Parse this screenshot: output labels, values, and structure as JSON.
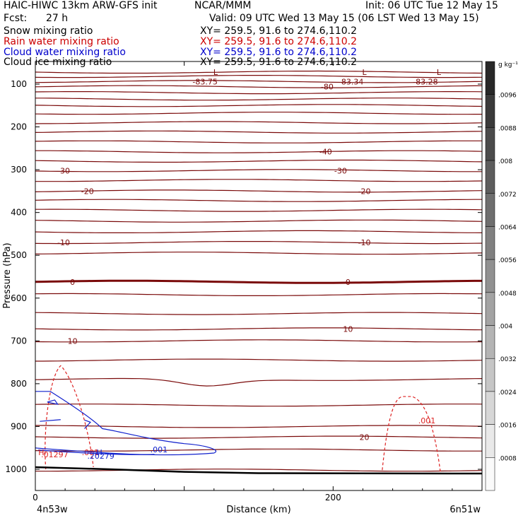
{
  "header": {
    "model": "HAIC-HIWC 13km ARW-GFS init",
    "org": "NCAR/MMM",
    "init": "Init: 06 UTC Tue 12 May 15",
    "fcst_label": "Fcst:",
    "fcst_value": "27 h",
    "valid": "Valid: 09 UTC Wed 13 May 15 (06 LST Wed 13 May 15)"
  },
  "fields": [
    {
      "name": "Snow mixing ratio",
      "xy": "XY= 259.5, 91.6 to 274.6,110.2",
      "color": "#000000"
    },
    {
      "name": "Rain water mixing ratio",
      "xy": "XY= 259.5, 91.6 to 274.6,110.2",
      "color": "#cc0000"
    },
    {
      "name": "Cloud water mixing ratio",
      "xy": "XY= 259.5, 91.6 to 274.6,110.2",
      "color": "#0000cc"
    },
    {
      "name": "Cloud ice mixing ratio",
      "xy": "XY= 259.5, 91.6 to 274.6,110.2",
      "color": "#000000"
    }
  ],
  "colors": {
    "temperature": "#7a0a0a",
    "rain": "#dd2222",
    "cloud_water": "#1020cc",
    "terrain": "#000000"
  },
  "chart_data": {
    "type": "cross-section",
    "xlabel": "Distance (km)",
    "ylabel": "Pressure (hPa)",
    "x_range": [
      0,
      300
    ],
    "y_range": [
      1050,
      50
    ],
    "x_ticks": [
      0,
      100,
      200,
      300
    ],
    "x_tick_labels": [
      "0",
      "200"
    ],
    "y_ticks": [
      100,
      200,
      300,
      400,
      500,
      600,
      700,
      800,
      900,
      1000
    ],
    "endpoint_left": "4n53w",
    "endpoint_right": "6n51w",
    "colorbar": {
      "unit": "g kg⁻¹",
      "labels": [
        ".0096",
        ".0088",
        ".008",
        ".0072",
        ".0064",
        ".0056",
        ".0048",
        ".004",
        ".0032",
        ".0024",
        ".0016",
        ".0008"
      ],
      "levels": [
        0.0096,
        0.0088,
        0.008,
        0.0072,
        0.0064,
        0.0056,
        0.0048,
        0.004,
        0.0032,
        0.0024,
        0.0016,
        0.0008
      ]
    },
    "temperature_contours": [
      {
        "p": 72
      },
      {
        "p": 82
      },
      {
        "p": 94,
        "labels": [
          {
            "x": 114,
            "text": "-83.75"
          },
          {
            "x": 212,
            "text": "-83.34"
          },
          {
            "x": 262,
            "text": "-83.28"
          }
        ]
      },
      {
        "p": 106,
        "labels": [
          {
            "x": 196,
            "text": "-80"
          }
        ]
      },
      {
        "p": 120
      },
      {
        "p": 135
      },
      {
        "p": 150
      },
      {
        "p": 168
      },
      {
        "p": 190
      },
      {
        "p": 212
      },
      {
        "p": 235
      },
      {
        "p": 258,
        "labels": [
          {
            "x": 195,
            "text": "-40"
          }
        ]
      },
      {
        "p": 280
      },
      {
        "p": 302,
        "labels": [
          {
            "x": 19,
            "text": "-30"
          },
          {
            "x": 205,
            "text": "-30"
          }
        ]
      },
      {
        "p": 325
      },
      {
        "p": 350,
        "labels": [
          {
            "x": 35,
            "text": "-20"
          },
          {
            "x": 221,
            "text": "-20"
          }
        ]
      },
      {
        "p": 372
      },
      {
        "p": 395
      },
      {
        "p": 420
      },
      {
        "p": 445
      },
      {
        "p": 470,
        "labels": [
          {
            "x": 19,
            "text": "-10"
          },
          {
            "x": 221,
            "text": "-10"
          }
        ]
      },
      {
        "p": 495
      },
      {
        "p": 562,
        "labels": [
          {
            "x": 25,
            "text": "0"
          },
          {
            "x": 210,
            "text": "0"
          }
        ],
        "bold": true
      },
      {
        "p": 592
      },
      {
        "p": 636
      },
      {
        "p": 672,
        "labels": [
          {
            "x": 210,
            "text": "10"
          }
        ]
      },
      {
        "p": 700,
        "labels": [
          {
            "x": 25,
            "text": "10"
          }
        ]
      },
      {
        "p": 745
      },
      {
        "p": 790
      },
      {
        "p": 850
      },
      {
        "p": 900
      },
      {
        "p": 925,
        "labels": [
          {
            "x": 221,
            "text": "20"
          }
        ]
      },
      {
        "p": 955
      },
      {
        "p": 1002
      }
    ],
    "terrain_label_extremes": [
      {
        "text": "L",
        "x": 121,
        "p": 72
      },
      {
        "text": "L",
        "x": 221,
        "p": 72
      },
      {
        "text": "L",
        "x": 271,
        "p": 72
      },
      {
        "text": "H",
        "x": 4,
        "p": 960
      },
      {
        "text": "H",
        "x": 43,
        "p": 960
      }
    ],
    "rain_contours": [
      {
        "level": ".001",
        "label_x": 263,
        "label_p": 893
      },
      {
        "level": ".01297",
        "label_x": 13,
        "label_p": 972
      },
      {
        "level": ".001",
        "label_x": 37,
        "label_p": 967
      }
    ],
    "cloud_water_contours": [
      {
        "level": ".20279",
        "label_x": 44,
        "label_p": 975
      },
      {
        "level": ".001",
        "label_x": 83,
        "label_p": 960
      }
    ]
  }
}
